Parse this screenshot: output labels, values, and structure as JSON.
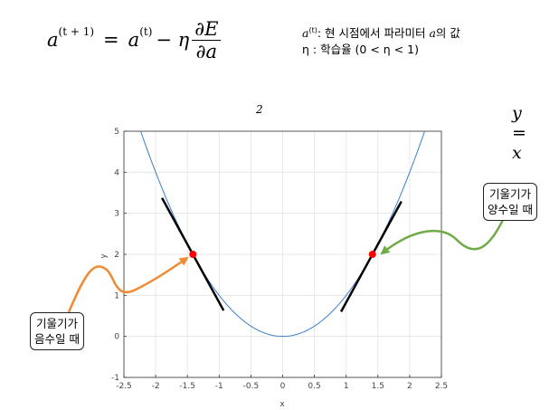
{
  "formula": {
    "lhs_var": "a",
    "lhs_sup": "(t + 1)",
    "equals": "=",
    "rhs_var": "a",
    "rhs_sup": "(t)",
    "minus_eta": "− η",
    "numerator": "∂E",
    "denominator": "∂a"
  },
  "legend": {
    "line1_var": "a",
    "line1_sup": "(t)",
    "line1_text": ": 현 시점에서 파라미터",
    "line1_var2": "a",
    "line1_tail": "의 값",
    "line2": "η :  학습율 (0 < η < 1)"
  },
  "plot": {
    "title_lhs": "y = x",
    "title_sup": "2",
    "xlabel": "x",
    "ylabel": "y"
  },
  "chart_data": {
    "type": "line",
    "function": "y = x^2",
    "title": "y = x^2",
    "xlabel": "x",
    "ylabel": "y",
    "xlim": [
      -2.5,
      2.5
    ],
    "ylim": [
      -1,
      5
    ],
    "x_ticks": [
      "-2.5",
      "-2",
      "-1.5",
      "-1",
      "-0.5",
      "0",
      "0.5",
      "1",
      "1.5",
      "2",
      "2.5"
    ],
    "y_ticks": [
      "-1",
      "0",
      "1",
      "2",
      "3",
      "4",
      "5"
    ],
    "grid": true,
    "curve_color": "#3b7ec9",
    "points": [
      {
        "x": -1.414,
        "y": 2.0,
        "color": "#ff0000"
      },
      {
        "x": 1.414,
        "y": 2.0,
        "color": "#ff0000"
      }
    ],
    "tangents": [
      {
        "x_from": -1.9,
        "x_to": -0.93,
        "slope": -2.828,
        "at_x": -1.414
      },
      {
        "x_from": 0.92,
        "x_to": 1.87,
        "slope": 2.828,
        "at_x": 1.414
      }
    ]
  },
  "callouts": {
    "left": {
      "line1": "기울기가",
      "line2": "음수일 때",
      "arrow_color": "#f08a33"
    },
    "right": {
      "line1": "기울기가",
      "line2": "양수일 때",
      "arrow_color": "#6fac46"
    }
  }
}
